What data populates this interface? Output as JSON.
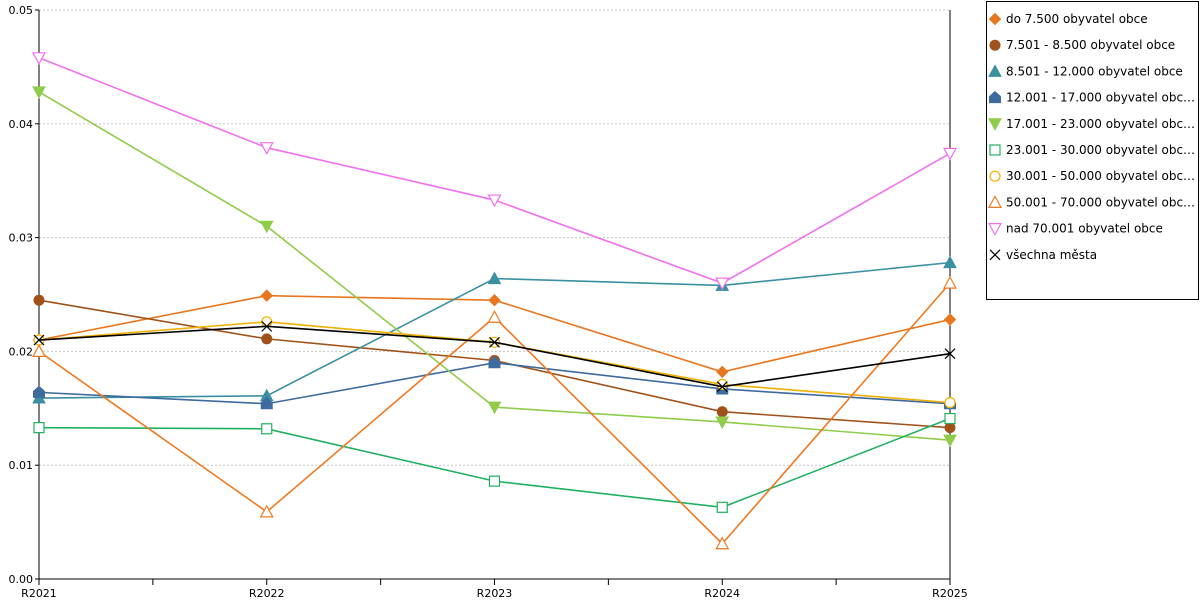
{
  "chart_data": {
    "type": "line",
    "x": [
      "R2021",
      "R2022",
      "R2023",
      "R2024",
      "R2025"
    ],
    "ylim": [
      0,
      0.05
    ],
    "yticks": [
      "0.00",
      "0.01",
      "0.02",
      "0.03",
      "0.04",
      "0.05"
    ],
    "grid": true,
    "legend_position": "right",
    "series": [
      {
        "name": "do 7.500 obyvatel obce",
        "color": "#e8761e",
        "marker": "diamond",
        "values": [
          0.021,
          0.0249,
          0.0245,
          0.0182,
          0.0228
        ]
      },
      {
        "name": "7.501 - 8.500 obyvatel obce",
        "color": "#a0521a",
        "marker": "circle",
        "values": [
          0.0245,
          0.0211,
          0.0192,
          0.0147,
          0.0133
        ]
      },
      {
        "name": "8.501 - 12.000 obyvatel obce",
        "color": "#3a8fa0",
        "marker": "triangle-up",
        "values": [
          0.0159,
          0.0161,
          0.0264,
          0.0258,
          0.0278
        ]
      },
      {
        "name": "12.001 - 17.000 obyvatel obc…",
        "color": "#3e6a9e",
        "marker": "pentagon",
        "values": [
          0.0164,
          0.0154,
          0.019,
          0.0167,
          0.0154
        ]
      },
      {
        "name": "17.001 - 23.000 obyvatel obc…",
        "color": "#8fcc4a",
        "marker": "triangle-down",
        "values": [
          0.0428,
          0.031,
          0.0151,
          0.0138,
          0.0122
        ]
      },
      {
        "name": "23.001 - 30.000 obyvatel obc…",
        "color": "#20b060",
        "marker": "square-open",
        "values": [
          0.0133,
          0.0132,
          0.0086,
          0.0063,
          0.0141
        ]
      },
      {
        "name": "30.001 - 50.000 obyvatel obc…",
        "color": "#f0b000",
        "marker": "circle-open",
        "values": [
          0.021,
          0.0226,
          0.0208,
          0.0171,
          0.0155
        ]
      },
      {
        "name": "50.001 - 70.000 obyvatel obc…",
        "color": "#f07820",
        "marker": "triangle-up-open",
        "values": [
          0.02,
          0.0059,
          0.023,
          0.0031,
          0.026
        ]
      },
      {
        "name": "nad 70.001 obyvatel obce",
        "color": "#f070f0",
        "marker": "triangle-down-open",
        "values": [
          0.0458,
          0.0379,
          0.0333,
          0.026,
          0.0374
        ]
      },
      {
        "name": "všechna města",
        "color": "#000000",
        "marker": "x",
        "values": [
          0.021,
          0.0222,
          0.0208,
          0.0169,
          0.0198
        ]
      }
    ]
  }
}
